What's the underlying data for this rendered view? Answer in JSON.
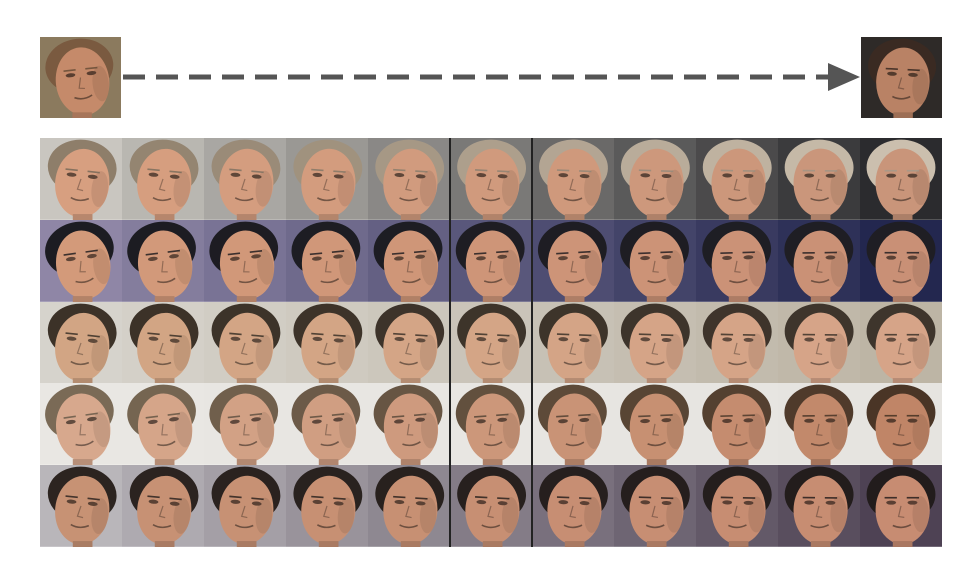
{
  "figure": {
    "source_face": {
      "icon": "face-icon",
      "skin": "#c58a6a",
      "hair": "#7a5a40",
      "bg": "#8b7a5e"
    },
    "target_face": {
      "icon": "face-icon",
      "skin": "#b98265",
      "hair": "#3a2a22",
      "bg": "#2e2a28"
    },
    "arrow": {
      "icon": "dashed-arrow-right-icon",
      "color": "#555555"
    },
    "rows": [
      {
        "bg_start": "#c9c6c0",
        "bg_end": "#2b2b2e",
        "skin_start": "#d79f80",
        "skin_end": "#c9957a",
        "hair_start": "#8e7e6a",
        "hair_end": "#cbbfae"
      },
      {
        "bg_start": "#8f86a6",
        "bg_end": "#23274f",
        "skin_start": "#d39a7a",
        "skin_end": "#c99076",
        "hair_start": "#1c1c22",
        "hair_end": "#1f1e24"
      },
      {
        "bg_start": "#d6d3cc",
        "bg_end": "#bdb5a5",
        "skin_start": "#d2a584",
        "skin_end": "#d6a488",
        "hair_start": "#3c3228",
        "hair_end": "#3e352c"
      },
      {
        "bg_start": "#e9e7e3",
        "bg_end": "#e6e4e0",
        "skin_start": "#d7a88d",
        "skin_end": "#c08567",
        "hair_start": "#7a6a56",
        "hair_end": "#4a3526"
      },
      {
        "bg_start": "#b9b6ba",
        "bg_end": "#4e4254",
        "skin_start": "#c79274",
        "skin_end": "#c78c72",
        "hair_start": "#2c2420",
        "hair_end": "#221c1c"
      }
    ],
    "columns_per_row": 11,
    "divider_after_columns": [
      5,
      6
    ]
  }
}
